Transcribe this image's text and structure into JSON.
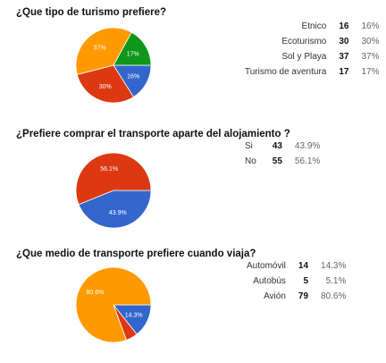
{
  "colors": {
    "blue": "#3366cc",
    "red": "#dc3912",
    "orange": "#ff9900",
    "green": "#109618"
  },
  "chart_data": [
    {
      "type": "pie",
      "title": "¿Que tipo de turismo prefiere?",
      "slices": [
        {
          "label": "Etnico",
          "count": "16",
          "pct": "16%",
          "value": 16,
          "color": "#3366cc",
          "slice_label": "16%"
        },
        {
          "label": "Ecoturismo",
          "count": "30",
          "pct": "30%",
          "value": 30,
          "color": "#dc3912",
          "slice_label": "30%"
        },
        {
          "label": "Sol y Playa",
          "count": "37",
          "pct": "37%",
          "value": 37,
          "color": "#ff9900",
          "slice_label": "37%"
        },
        {
          "label": "Turismo de aventura",
          "count": "17",
          "pct": "17%",
          "value": 17,
          "color": "#109618",
          "slice_label": "17%"
        }
      ]
    },
    {
      "type": "pie",
      "title": "¿Prefiere comprar el transporte aparte del alojamiento ?",
      "slices": [
        {
          "label": "Si",
          "count": "43",
          "pct": "43.9%",
          "value": 43.9,
          "color": "#3366cc",
          "slice_label": "43.9%"
        },
        {
          "label": "No",
          "count": "55",
          "pct": "56.1%",
          "value": 56.1,
          "color": "#dc3912",
          "slice_label": "56.1%"
        }
      ]
    },
    {
      "type": "pie",
      "title": "¿Que medio de transporte prefiere cuando viaja?",
      "slices": [
        {
          "label": "Automóvil",
          "count": "14",
          "pct": "14.3%",
          "value": 14.3,
          "color": "#3366cc",
          "slice_label": "14.3%"
        },
        {
          "label": "Autobús",
          "count": "5",
          "pct": "5.1%",
          "value": 5.1,
          "color": "#dc3912",
          "slice_label": ""
        },
        {
          "label": "Avión",
          "count": "79",
          "pct": "80.6%",
          "value": 80.6,
          "color": "#ff9900",
          "slice_label": "80.6%"
        }
      ]
    }
  ]
}
